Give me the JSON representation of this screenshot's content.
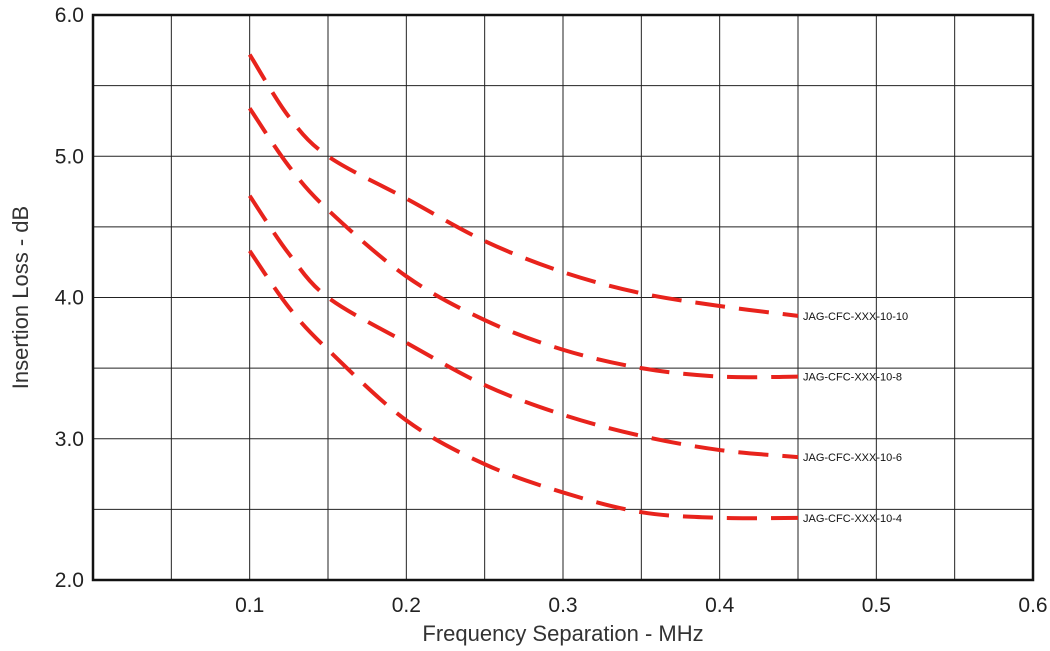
{
  "chart_data": {
    "type": "line",
    "xlabel": "Frequency Separation - MHz",
    "ylabel": "Insertion Loss - dB",
    "xlim": [
      0,
      0.6
    ],
    "ylim": [
      2.0,
      6.0
    ],
    "x_ticks": [
      "0.1",
      "0.2",
      "0.3",
      "0.4",
      "0.5",
      "0.6"
    ],
    "y_ticks": [
      "2.0",
      "3.0",
      "4.0",
      "5.0",
      "6.0"
    ],
    "grid": true,
    "line_color": "#e8231c",
    "line_style": "dashed",
    "series": [
      {
        "name": "JAG-CFC-XXX-10-10",
        "x": [
          0.1,
          0.125,
          0.15,
          0.2,
          0.25,
          0.3,
          0.35,
          0.4,
          0.45
        ],
        "y": [
          5.72,
          5.28,
          5.0,
          4.7,
          4.4,
          4.18,
          4.03,
          3.94,
          3.87
        ]
      },
      {
        "name": "JAG-CFC-XXX-10-8",
        "x": [
          0.1,
          0.125,
          0.15,
          0.2,
          0.25,
          0.3,
          0.35,
          0.4,
          0.45
        ],
        "y": [
          5.34,
          4.93,
          4.62,
          4.15,
          3.84,
          3.63,
          3.5,
          3.44,
          3.44
        ]
      },
      {
        "name": "JAG-CFC-XXX-10-6",
        "x": [
          0.1,
          0.125,
          0.15,
          0.2,
          0.25,
          0.3,
          0.35,
          0.4,
          0.45
        ],
        "y": [
          4.72,
          4.31,
          4.0,
          3.68,
          3.38,
          3.17,
          3.02,
          2.92,
          2.87
        ]
      },
      {
        "name": "JAG-CFC-XXX-10-4",
        "x": [
          0.1,
          0.125,
          0.15,
          0.2,
          0.25,
          0.3,
          0.35,
          0.4,
          0.45
        ],
        "y": [
          4.33,
          3.93,
          3.63,
          3.13,
          2.82,
          2.62,
          2.48,
          2.44,
          2.44
        ]
      }
    ]
  }
}
